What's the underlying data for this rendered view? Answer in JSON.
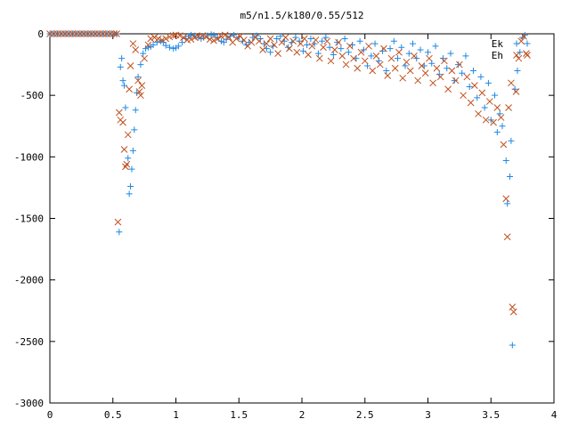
{
  "chart_data": {
    "type": "scatter",
    "title": "m5/n1.5/k180/0.55/512",
    "xlabel": "",
    "ylabel": "",
    "xlim": [
      0,
      4
    ],
    "ylim": [
      -3000,
      0
    ],
    "xticks": [
      "0",
      "0.5",
      "1",
      "1.5",
      "2",
      "2.5",
      "3",
      "3.5",
      "4"
    ],
    "xtick_values": [
      0,
      0.5,
      1,
      1.5,
      2,
      2.5,
      3,
      3.5,
      4
    ],
    "yticks": [
      "0",
      "-500",
      "-1000",
      "-1500",
      "-2000",
      "-2500",
      "-3000"
    ],
    "ytick_values": [
      0,
      -500,
      -1000,
      -1500,
      -2000,
      -2500,
      -3000
    ],
    "grid": false,
    "legend_position": "top-right",
    "series": [
      {
        "name": "Ek",
        "marker": "plus",
        "color": "#1e88e5",
        "points": [
          [
            0.0,
            0
          ],
          [
            0.03,
            0
          ],
          [
            0.06,
            0
          ],
          [
            0.09,
            0
          ],
          [
            0.12,
            0
          ],
          [
            0.15,
            0
          ],
          [
            0.18,
            0
          ],
          [
            0.21,
            0
          ],
          [
            0.24,
            0
          ],
          [
            0.27,
            0
          ],
          [
            0.3,
            0
          ],
          [
            0.33,
            0
          ],
          [
            0.36,
            0
          ],
          [
            0.39,
            0
          ],
          [
            0.42,
            0
          ],
          [
            0.45,
            0
          ],
          [
            0.48,
            0
          ],
          [
            0.51,
            0
          ],
          [
            0.53,
            0
          ],
          [
            0.55,
            -1610
          ],
          [
            0.56,
            -270
          ],
          [
            0.57,
            -200
          ],
          [
            0.58,
            -380
          ],
          [
            0.59,
            -420
          ],
          [
            0.6,
            -600
          ],
          [
            0.62,
            -1010
          ],
          [
            0.63,
            -1300
          ],
          [
            0.64,
            -1240
          ],
          [
            0.65,
            -1100
          ],
          [
            0.66,
            -950
          ],
          [
            0.67,
            -780
          ],
          [
            0.68,
            -620
          ],
          [
            0.69,
            -480
          ],
          [
            0.7,
            -350
          ],
          [
            0.72,
            -250
          ],
          [
            0.74,
            -160
          ],
          [
            0.76,
            -120
          ],
          [
            0.78,
            -110
          ],
          [
            0.8,
            -105
          ],
          [
            0.82,
            -90
          ],
          [
            0.85,
            -70
          ],
          [
            0.88,
            -60
          ],
          [
            0.9,
            -70
          ],
          [
            0.92,
            -95
          ],
          [
            0.95,
            -110
          ],
          [
            0.98,
            -120
          ],
          [
            1.0,
            -115
          ],
          [
            1.02,
            -100
          ],
          [
            1.05,
            -70
          ],
          [
            1.08,
            -40
          ],
          [
            1.1,
            -20
          ],
          [
            1.12,
            -10
          ],
          [
            1.15,
            -15
          ],
          [
            1.18,
            -30
          ],
          [
            1.2,
            -40
          ],
          [
            1.22,
            -30
          ],
          [
            1.25,
            -15
          ],
          [
            1.28,
            -5
          ],
          [
            1.3,
            -10
          ],
          [
            1.33,
            -30
          ],
          [
            1.36,
            -60
          ],
          [
            1.38,
            -70
          ],
          [
            1.4,
            -45
          ],
          [
            1.43,
            -20
          ],
          [
            1.46,
            -10
          ],
          [
            1.5,
            -25
          ],
          [
            1.53,
            -60
          ],
          [
            1.56,
            -90
          ],
          [
            1.58,
            -70
          ],
          [
            1.61,
            -30
          ],
          [
            1.64,
            -15
          ],
          [
            1.67,
            -40
          ],
          [
            1.7,
            -80
          ],
          [
            1.72,
            -120
          ],
          [
            1.75,
            -150
          ],
          [
            1.77,
            -100
          ],
          [
            1.8,
            -40
          ],
          [
            1.83,
            -20
          ],
          [
            1.86,
            -60
          ],
          [
            1.89,
            -110
          ],
          [
            1.92,
            -70
          ],
          [
            1.95,
            -30
          ],
          [
            1.98,
            -60
          ],
          [
            2.01,
            -140
          ],
          [
            2.04,
            -90
          ],
          [
            2.07,
            -40
          ],
          [
            2.1,
            -80
          ],
          [
            2.13,
            -160
          ],
          [
            2.16,
            -60
          ],
          [
            2.19,
            -30
          ],
          [
            2.22,
            -110
          ],
          [
            2.25,
            -170
          ],
          [
            2.28,
            -70
          ],
          [
            2.31,
            -120
          ],
          [
            2.34,
            -40
          ],
          [
            2.37,
            -150
          ],
          [
            2.4,
            -90
          ],
          [
            2.43,
            -200
          ],
          [
            2.46,
            -60
          ],
          [
            2.49,
            -130
          ],
          [
            2.52,
            -260
          ],
          [
            2.55,
            -180
          ],
          [
            2.58,
            -80
          ],
          [
            2.61,
            -220
          ],
          [
            2.64,
            -140
          ],
          [
            2.67,
            -300
          ],
          [
            2.7,
            -120
          ],
          [
            2.73,
            -60
          ],
          [
            2.76,
            -200
          ],
          [
            2.79,
            -110
          ],
          [
            2.82,
            -260
          ],
          [
            2.85,
            -160
          ],
          [
            2.88,
            -80
          ],
          [
            2.91,
            -200
          ],
          [
            2.94,
            -130
          ],
          [
            2.97,
            -260
          ],
          [
            3.0,
            -150
          ],
          [
            3.03,
            -240
          ],
          [
            3.06,
            -100
          ],
          [
            3.09,
            -330
          ],
          [
            3.12,
            -200
          ],
          [
            3.15,
            -280
          ],
          [
            3.18,
            -160
          ],
          [
            3.21,
            -380
          ],
          [
            3.24,
            -250
          ],
          [
            3.27,
            -320
          ],
          [
            3.3,
            -180
          ],
          [
            3.33,
            -430
          ],
          [
            3.36,
            -300
          ],
          [
            3.39,
            -520
          ],
          [
            3.42,
            -350
          ],
          [
            3.45,
            -600
          ],
          [
            3.48,
            -400
          ],
          [
            3.5,
            -700
          ],
          [
            3.53,
            -500
          ],
          [
            3.55,
            -800
          ],
          [
            3.57,
            -650
          ],
          [
            3.59,
            -750
          ],
          [
            3.62,
            -1030
          ],
          [
            3.63,
            -1380
          ],
          [
            3.65,
            -1160
          ],
          [
            3.66,
            -870
          ],
          [
            3.67,
            -2530
          ],
          [
            3.69,
            -450
          ],
          [
            3.71,
            -300
          ],
          [
            3.73,
            -150
          ],
          [
            3.75,
            -30
          ],
          [
            3.77,
            -10
          ]
        ]
      },
      {
        "name": "Eh",
        "marker": "cross",
        "color": "#c0501e",
        "points": [
          [
            0.0,
            0
          ],
          [
            0.03,
            0
          ],
          [
            0.06,
            0
          ],
          [
            0.09,
            0
          ],
          [
            0.12,
            0
          ],
          [
            0.15,
            0
          ],
          [
            0.18,
            0
          ],
          [
            0.21,
            0
          ],
          [
            0.24,
            0
          ],
          [
            0.27,
            0
          ],
          [
            0.3,
            0
          ],
          [
            0.33,
            0
          ],
          [
            0.36,
            0
          ],
          [
            0.39,
            0
          ],
          [
            0.42,
            0
          ],
          [
            0.45,
            0
          ],
          [
            0.48,
            0
          ],
          [
            0.51,
            0
          ],
          [
            0.53,
            0
          ],
          [
            0.54,
            -1530
          ],
          [
            0.55,
            -640
          ],
          [
            0.56,
            -700
          ],
          [
            0.58,
            -720
          ],
          [
            0.59,
            -940
          ],
          [
            0.6,
            -1080
          ],
          [
            0.61,
            -1060
          ],
          [
            0.62,
            -820
          ],
          [
            0.63,
            -450
          ],
          [
            0.64,
            -260
          ],
          [
            0.66,
            -80
          ],
          [
            0.68,
            -130
          ],
          [
            0.7,
            -380
          ],
          [
            0.71,
            -470
          ],
          [
            0.72,
            -500
          ],
          [
            0.73,
            -420
          ],
          [
            0.75,
            -200
          ],
          [
            0.78,
            -90
          ],
          [
            0.8,
            -40
          ],
          [
            0.83,
            -30
          ],
          [
            0.86,
            -40
          ],
          [
            0.89,
            -50
          ],
          [
            0.92,
            -40
          ],
          [
            0.95,
            -25
          ],
          [
            0.98,
            -15
          ],
          [
            1.0,
            -10
          ],
          [
            1.03,
            -15
          ],
          [
            1.06,
            -30
          ],
          [
            1.09,
            -50
          ],
          [
            1.12,
            -45
          ],
          [
            1.15,
            -30
          ],
          [
            1.18,
            -20
          ],
          [
            1.21,
            -15
          ],
          [
            1.24,
            -25
          ],
          [
            1.27,
            -45
          ],
          [
            1.3,
            -55
          ],
          [
            1.33,
            -40
          ],
          [
            1.36,
            -20
          ],
          [
            1.39,
            -10
          ],
          [
            1.42,
            -30
          ],
          [
            1.45,
            -70
          ],
          [
            1.48,
            -40
          ],
          [
            1.51,
            -20
          ],
          [
            1.54,
            -50
          ],
          [
            1.57,
            -100
          ],
          [
            1.6,
            -70
          ],
          [
            1.63,
            -30
          ],
          [
            1.66,
            -60
          ],
          [
            1.69,
            -130
          ],
          [
            1.72,
            -80
          ],
          [
            1.75,
            -40
          ],
          [
            1.78,
            -90
          ],
          [
            1.81,
            -160
          ],
          [
            1.84,
            -70
          ],
          [
            1.87,
            -30
          ],
          [
            1.9,
            -120
          ],
          [
            1.93,
            -60
          ],
          [
            1.96,
            -150
          ],
          [
            1.99,
            -80
          ],
          [
            2.02,
            -40
          ],
          [
            2.05,
            -170
          ],
          [
            2.08,
            -100
          ],
          [
            2.11,
            -50
          ],
          [
            2.14,
            -200
          ],
          [
            2.17,
            -110
          ],
          [
            2.2,
            -60
          ],
          [
            2.23,
            -220
          ],
          [
            2.26,
            -130
          ],
          [
            2.29,
            -70
          ],
          [
            2.32,
            -180
          ],
          [
            2.35,
            -250
          ],
          [
            2.38,
            -100
          ],
          [
            2.41,
            -200
          ],
          [
            2.44,
            -280
          ],
          [
            2.47,
            -150
          ],
          [
            2.5,
            -220
          ],
          [
            2.53,
            -100
          ],
          [
            2.56,
            -300
          ],
          [
            2.59,
            -180
          ],
          [
            2.62,
            -250
          ],
          [
            2.65,
            -120
          ],
          [
            2.68,
            -340
          ],
          [
            2.71,
            -200
          ],
          [
            2.74,
            -280
          ],
          [
            2.77,
            -150
          ],
          [
            2.8,
            -360
          ],
          [
            2.83,
            -230
          ],
          [
            2.86,
            -300
          ],
          [
            2.89,
            -180
          ],
          [
            2.92,
            -380
          ],
          [
            2.95,
            -260
          ],
          [
            2.98,
            -320
          ],
          [
            3.01,
            -200
          ],
          [
            3.04,
            -400
          ],
          [
            3.07,
            -280
          ],
          [
            3.1,
            -350
          ],
          [
            3.13,
            -220
          ],
          [
            3.16,
            -450
          ],
          [
            3.19,
            -300
          ],
          [
            3.22,
            -380
          ],
          [
            3.25,
            -250
          ],
          [
            3.28,
            -500
          ],
          [
            3.31,
            -350
          ],
          [
            3.34,
            -560
          ],
          [
            3.37,
            -420
          ],
          [
            3.4,
            -650
          ],
          [
            3.43,
            -480
          ],
          [
            3.46,
            -700
          ],
          [
            3.49,
            -550
          ],
          [
            3.52,
            -720
          ],
          [
            3.55,
            -600
          ],
          [
            3.58,
            -680
          ],
          [
            3.6,
            -900
          ],
          [
            3.62,
            -1340
          ],
          [
            3.63,
            -1650
          ],
          [
            3.64,
            -600
          ],
          [
            3.66,
            -400
          ],
          [
            3.67,
            -2220
          ],
          [
            3.68,
            -2260
          ],
          [
            3.7,
            -470
          ],
          [
            3.72,
            -200
          ],
          [
            3.74,
            -60
          ],
          [
            3.76,
            -20
          ],
          [
            3.78,
            -160
          ]
        ]
      }
    ]
  }
}
